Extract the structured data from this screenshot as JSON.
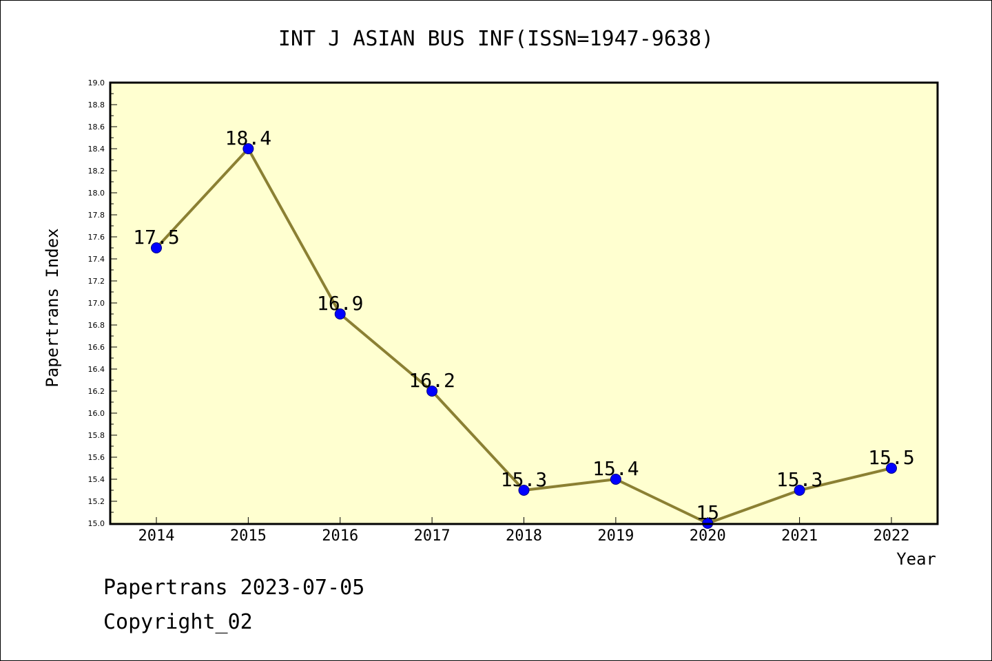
{
  "chart_data": {
    "type": "line",
    "title": "INT J ASIAN BUS INF(ISSN=1947-9638)",
    "xlabel": "Year",
    "ylabel": "Papertrans Index",
    "categories": [
      "2014",
      "2015",
      "2016",
      "2017",
      "2018",
      "2019",
      "2020",
      "2021",
      "2022"
    ],
    "values": [
      17.5,
      18.4,
      16.9,
      16.2,
      15.3,
      15.4,
      15.0,
      15.3,
      15.5
    ],
    "data_labels": [
      "17.5",
      "18.4",
      "16.9",
      "16.2",
      "15.3",
      "15.4",
      "15",
      "15.3",
      "15.5"
    ],
    "ylim": [
      15.0,
      19.0
    ],
    "y_ticks": [
      "15.0",
      "15.2",
      "15.4",
      "15.6",
      "15.8",
      "16.0",
      "16.2",
      "16.4",
      "16.6",
      "16.8",
      "17.0",
      "17.2",
      "17.4",
      "17.6",
      "17.8",
      "18.0",
      "18.2",
      "18.4",
      "18.6",
      "18.8",
      "19.0"
    ],
    "grid": false,
    "colors": {
      "plot_background": "#ffffd0",
      "line": "#8b8033",
      "marker": "#0000ff",
      "marker_edge": "#000080"
    }
  },
  "footer": {
    "line1": "Papertrans 2023-07-05",
    "line2": "Copyright_02"
  }
}
